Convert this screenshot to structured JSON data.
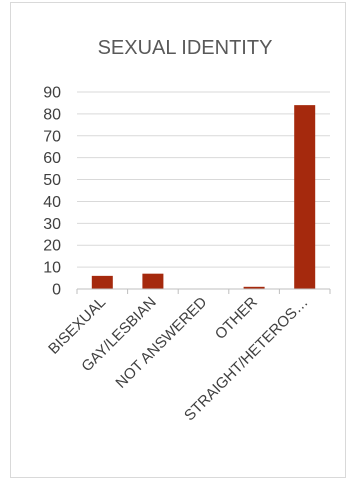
{
  "chart_data": {
    "type": "bar",
    "title": "SEXUAL IDENTITY",
    "categories": [
      "BISEXUAL",
      "GAY/LESBIAN",
      "NOT ANSWERED",
      "OTHER",
      "STRAIGHT/HETEROS…"
    ],
    "values": [
      6,
      7,
      0,
      1,
      84
    ],
    "ylim": [
      0,
      90
    ],
    "yticks": [
      0,
      10,
      20,
      30,
      40,
      50,
      60,
      70,
      80,
      90
    ],
    "grid": true,
    "legend": "none",
    "xlabel": "",
    "ylabel": ""
  },
  "colors": {
    "bar": "#a5290d",
    "gridline": "#d9d9d9",
    "axis": "#bfbfbf",
    "text": "#404040",
    "title": "#595959"
  }
}
